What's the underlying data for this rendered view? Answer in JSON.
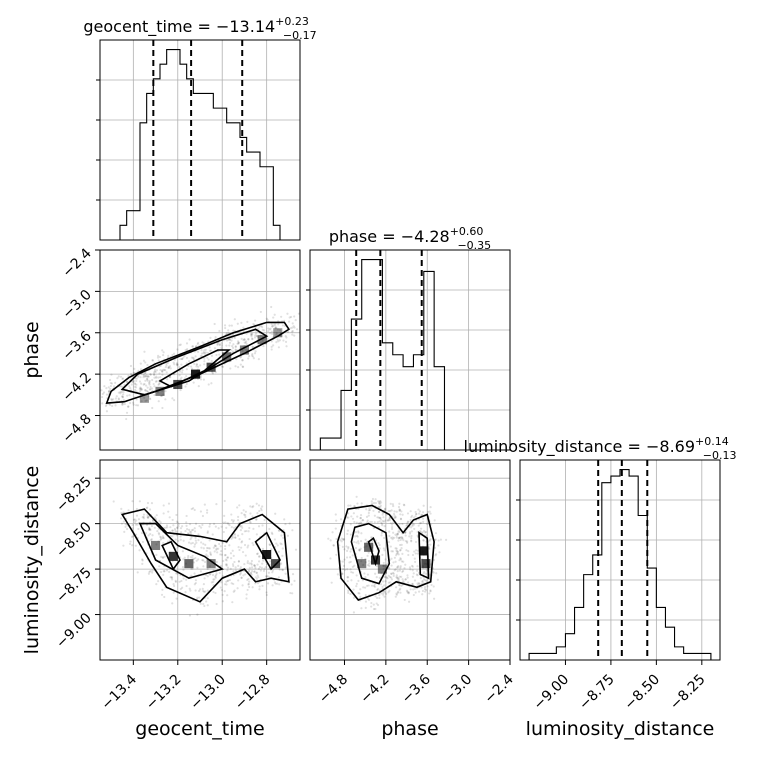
{
  "chart_data": {
    "type": "corner",
    "parameters": [
      {
        "name": "geocent_time",
        "title": "geocent_time = −13.14",
        "title_sup": "+0.23",
        "title_sub": "−0.17",
        "range": [
          -13.55,
          -12.65
        ],
        "ticks": [
          -13.4,
          -13.2,
          -13.0,
          -12.8
        ],
        "tick_labels": [
          "−13.4",
          "−13.2",
          "−13.0",
          "−12.8"
        ],
        "quantiles": [
          -13.31,
          -13.14,
          -12.91
        ],
        "hist_bins": [
          -13.55,
          -13.52,
          -13.49,
          -13.46,
          -13.43,
          -13.4,
          -13.37,
          -13.34,
          -13.31,
          -13.28,
          -13.25,
          -13.22,
          -13.19,
          -13.16,
          -13.13,
          -13.1,
          -13.07,
          -13.04,
          -13.01,
          -12.98,
          -12.95,
          -12.92,
          -12.89,
          -12.86,
          -12.83,
          -12.8,
          -12.77,
          -12.74,
          -12.71,
          -12.68,
          -12.65
        ],
        "hist_counts": [
          0,
          0,
          0,
          1,
          2,
          2,
          8,
          10,
          11,
          12,
          13,
          13,
          12,
          11,
          10,
          10,
          10,
          9,
          9,
          8,
          8,
          7,
          6,
          6,
          5,
          5,
          1,
          0,
          0,
          0
        ]
      },
      {
        "name": "phase",
        "title": "phase = −4.28",
        "title_sup": "+0.60",
        "title_sub": "−0.35",
        "range": [
          -5.3,
          -2.4
        ],
        "ticks": [
          -4.8,
          -4.2,
          -3.6,
          -3.0,
          -2.4
        ],
        "tick_labels": [
          "−4.8",
          "−4.2",
          "−3.6",
          "−3.0",
          "−2.4"
        ],
        "left_ticks": [
          -2.4,
          -3.0,
          -3.6,
          -4.2,
          -4.8
        ],
        "left_tick_labels": [
          "−2.4",
          "−3.0",
          "−3.6",
          "−4.2",
          "−4.8"
        ],
        "quantiles": [
          -4.63,
          -4.28,
          -3.68
        ],
        "hist_bins": [
          -5.3,
          -5.15,
          -5.0,
          -4.85,
          -4.7,
          -4.55,
          -4.4,
          -4.25,
          -4.1,
          -3.95,
          -3.8,
          -3.65,
          -3.5,
          -3.35,
          -3.2,
          -3.05,
          -2.9,
          -2.75,
          -2.6,
          -2.45,
          -2.4
        ],
        "hist_counts": [
          0,
          1,
          1,
          5,
          11,
          16,
          16,
          9,
          8,
          7,
          8,
          15,
          7,
          0,
          0,
          0,
          0,
          0,
          0,
          0
        ]
      },
      {
        "name": "luminosity_distance",
        "title": "luminosity_distance = −8.69",
        "title_sup": "+0.14",
        "title_sub": "−0.13",
        "range": [
          -9.25,
          -8.15
        ],
        "ticks": [
          -9.0,
          -8.75,
          -8.5,
          -8.25
        ],
        "tick_labels": [
          "−9.00",
          "−8.75",
          "−8.50",
          "−8.25"
        ],
        "left_ticks": [
          -8.25,
          -8.5,
          -8.75,
          -9.0
        ],
        "left_tick_labels": [
          "−8.25",
          "−8.50",
          "−8.75",
          "−9.00"
        ],
        "quantiles": [
          -8.82,
          -8.69,
          -8.55
        ],
        "hist_bins": [
          -9.25,
          -9.2,
          -9.15,
          -9.1,
          -9.05,
          -9.0,
          -8.95,
          -8.9,
          -8.85,
          -8.8,
          -8.75,
          -8.7,
          -8.65,
          -8.6,
          -8.55,
          -8.5,
          -8.45,
          -8.4,
          -8.35,
          -8.3,
          -8.25,
          -8.2,
          -8.15
        ],
        "hist_counts": [
          0,
          1,
          1,
          1,
          2,
          4,
          8,
          13,
          16,
          27,
          28,
          29,
          28,
          22,
          14,
          8,
          5,
          2,
          1,
          1,
          1,
          0
        ]
      }
    ],
    "pairs": [
      {
        "x": "geocent_time",
        "y": "phase",
        "contours": [
          [
            [
              -13.44,
              -4.6
            ],
            [
              -13.3,
              -4.45
            ],
            [
              -13.1,
              -4.2
            ],
            [
              -12.9,
              -3.9
            ],
            [
              -12.75,
              -3.65
            ],
            [
              -12.7,
              -3.55
            ],
            [
              -12.72,
              -3.45
            ],
            [
              -12.8,
              -3.45
            ],
            [
              -12.95,
              -3.6
            ],
            [
              -13.1,
              -3.8
            ],
            [
              -13.3,
              -4.05
            ],
            [
              -13.42,
              -4.25
            ],
            [
              -13.5,
              -4.45
            ],
            [
              -13.52,
              -4.62
            ]
          ],
          [
            [
              -13.35,
              -4.5
            ],
            [
              -13.15,
              -4.3
            ],
            [
              -12.95,
              -3.9
            ],
            [
              -12.8,
              -3.65
            ],
            [
              -12.85,
              -3.55
            ],
            [
              -13.0,
              -3.7
            ],
            [
              -13.2,
              -3.95
            ],
            [
              -13.38,
              -4.2
            ],
            [
              -13.45,
              -4.42
            ]
          ],
          [
            [
              -13.23,
              -4.38
            ],
            [
              -13.08,
              -4.15
            ],
            [
              -12.97,
              -3.85
            ],
            [
              -13.02,
              -3.85
            ],
            [
              -13.15,
              -4.05
            ],
            [
              -13.28,
              -4.3
            ]
          ]
        ],
        "density_cells": [
          {
            "x": -13.35,
            "y": -4.55,
            "w": 0.4
          },
          {
            "x": -13.28,
            "y": -4.45,
            "w": 0.5
          },
          {
            "x": -13.2,
            "y": -4.35,
            "w": 0.7
          },
          {
            "x": -13.12,
            "y": -4.2,
            "w": 0.9
          },
          {
            "x": -13.05,
            "y": -4.1,
            "w": 0.7
          },
          {
            "x": -12.98,
            "y": -3.95,
            "w": 0.6
          },
          {
            "x": -12.9,
            "y": -3.85,
            "w": 0.5
          },
          {
            "x": -12.82,
            "y": -3.7,
            "w": 0.5
          },
          {
            "x": -12.75,
            "y": -3.6,
            "w": 0.4
          }
        ]
      },
      {
        "x": "geocent_time",
        "y": "luminosity_distance",
        "contours": [
          [
            [
              -13.45,
              -8.45
            ],
            [
              -13.4,
              -8.55
            ],
            [
              -13.32,
              -8.72
            ],
            [
              -13.25,
              -8.85
            ],
            [
              -13.1,
              -8.93
            ],
            [
              -13.0,
              -8.8
            ],
            [
              -12.9,
              -8.75
            ],
            [
              -12.85,
              -8.82
            ],
            [
              -12.78,
              -8.8
            ],
            [
              -12.7,
              -8.82
            ],
            [
              -12.72,
              -8.55
            ],
            [
              -12.82,
              -8.45
            ],
            [
              -12.92,
              -8.5
            ],
            [
              -12.98,
              -8.6
            ],
            [
              -13.1,
              -8.57
            ],
            [
              -13.25,
              -8.55
            ],
            [
              -13.35,
              -8.42
            ]
          ],
          [
            [
              -13.37,
              -8.5
            ],
            [
              -13.3,
              -8.7
            ],
            [
              -13.15,
              -8.8
            ],
            [
              -13.0,
              -8.75
            ],
            [
              -13.08,
              -8.68
            ],
            [
              -13.2,
              -8.62
            ],
            [
              -13.3,
              -8.5
            ]
          ],
          [
            [
              -12.85,
              -8.6
            ],
            [
              -12.78,
              -8.75
            ],
            [
              -12.74,
              -8.7
            ],
            [
              -12.8,
              -8.55
            ]
          ],
          [
            [
              -13.27,
              -8.62
            ],
            [
              -13.22,
              -8.75
            ],
            [
              -13.19,
              -8.7
            ],
            [
              -13.23,
              -8.6
            ]
          ]
        ],
        "density_cells": [
          {
            "x": -13.3,
            "y": -8.62,
            "w": 0.5
          },
          {
            "x": -13.22,
            "y": -8.68,
            "w": 0.8
          },
          {
            "x": -13.15,
            "y": -8.72,
            "w": 0.6
          },
          {
            "x": -13.05,
            "y": -8.72,
            "w": 0.5
          },
          {
            "x": -12.8,
            "y": -8.67,
            "w": 0.9
          },
          {
            "x": -12.76,
            "y": -8.72,
            "w": 0.7
          }
        ]
      },
      {
        "x": "phase",
        "y": "luminosity_distance",
        "contours": [
          [
            [
              -4.9,
              -8.6
            ],
            [
              -4.85,
              -8.8
            ],
            [
              -4.6,
              -8.92
            ],
            [
              -4.3,
              -8.88
            ],
            [
              -4.05,
              -8.82
            ],
            [
              -3.75,
              -8.85
            ],
            [
              -3.55,
              -8.82
            ],
            [
              -3.5,
              -8.6
            ],
            [
              -3.6,
              -8.45
            ],
            [
              -3.8,
              -8.48
            ],
            [
              -3.95,
              -8.55
            ],
            [
              -4.15,
              -8.45
            ],
            [
              -4.4,
              -8.4
            ],
            [
              -4.75,
              -8.42
            ]
          ],
          [
            [
              -4.7,
              -8.6
            ],
            [
              -4.55,
              -8.8
            ],
            [
              -4.3,
              -8.83
            ],
            [
              -4.15,
              -8.72
            ],
            [
              -4.2,
              -8.55
            ],
            [
              -4.45,
              -8.5
            ],
            [
              -4.65,
              -8.52
            ]
          ],
          [
            [
              -3.72,
              -8.55
            ],
            [
              -3.6,
              -8.58
            ],
            [
              -3.58,
              -8.8
            ],
            [
              -3.7,
              -8.78
            ]
          ],
          [
            [
              -4.45,
              -8.6
            ],
            [
              -4.35,
              -8.72
            ],
            [
              -4.3,
              -8.65
            ],
            [
              -4.38,
              -8.58
            ]
          ]
        ],
        "density_cells": [
          {
            "x": -4.45,
            "y": -8.63,
            "w": 0.6
          },
          {
            "x": -4.35,
            "y": -8.7,
            "w": 0.8
          },
          {
            "x": -4.25,
            "y": -8.75,
            "w": 0.5
          },
          {
            "x": -4.55,
            "y": -8.72,
            "w": 0.5
          },
          {
            "x": -3.65,
            "y": -8.65,
            "w": 0.9
          },
          {
            "x": -3.62,
            "y": -8.72,
            "w": 0.7
          }
        ]
      }
    ]
  }
}
